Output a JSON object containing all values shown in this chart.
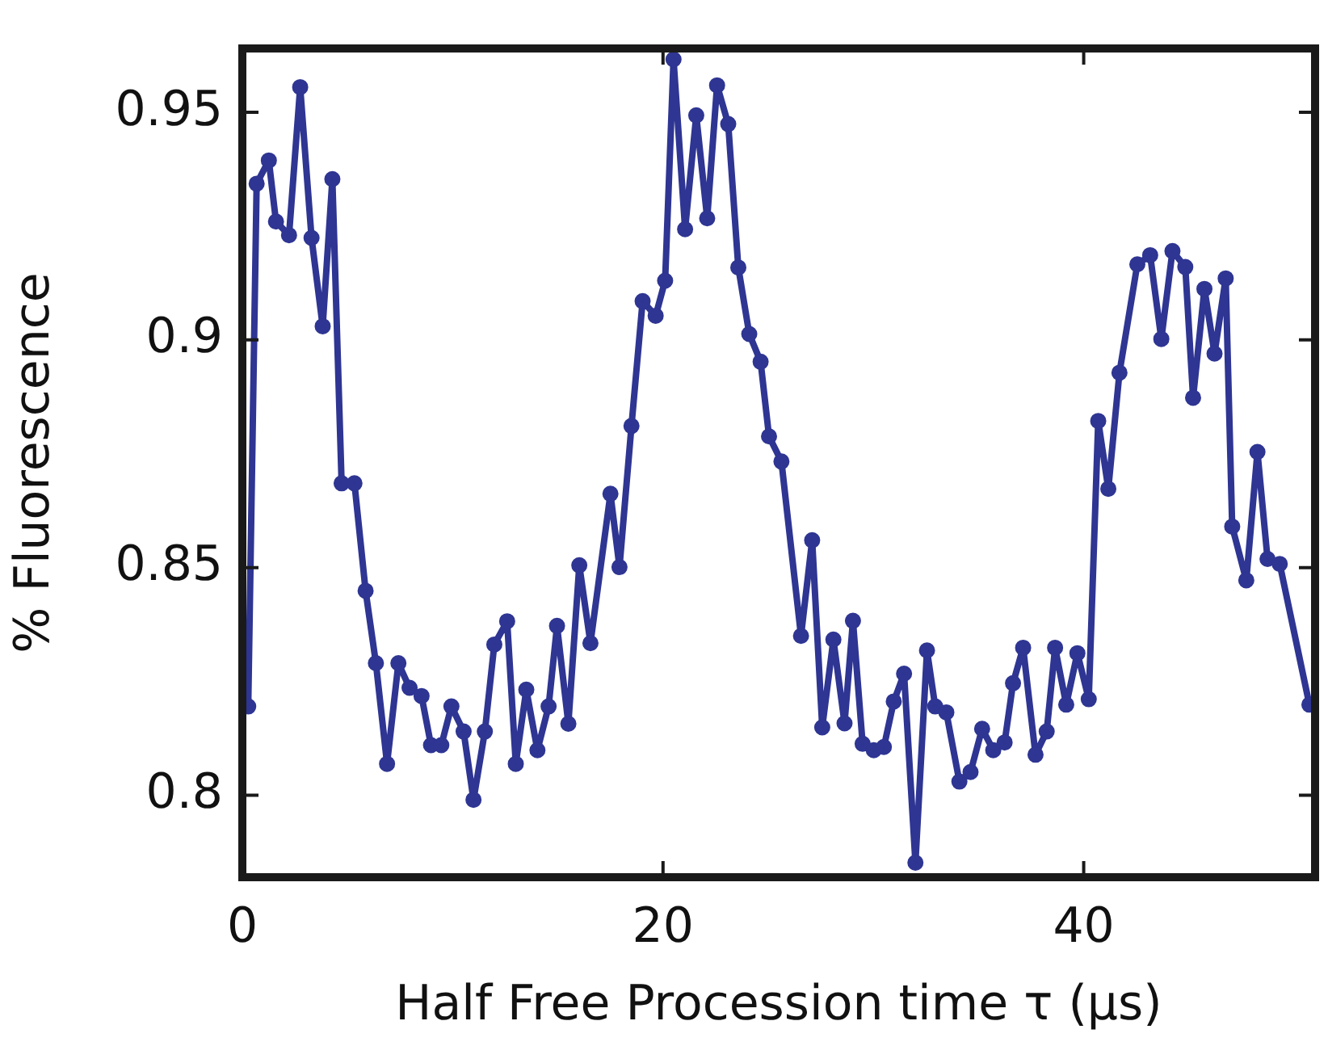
{
  "chart_data": {
    "type": "line",
    "xlabel": "Half Free Procession time τ (µs)",
    "ylabel": "% Fluorescence",
    "xlim": [
      0,
      51
    ],
    "xticks": [
      0,
      20,
      40
    ],
    "ylim": [
      0.782,
      0.964
    ],
    "yticks": [
      0.8,
      0.85,
      0.9,
      0.95
    ],
    "grid": false,
    "legend": false,
    "marker": "circle",
    "line_style": "solid",
    "series": [
      {
        "color": "#2e3592",
        "x": [
          0.28,
          0.68,
          1.26,
          1.6,
          2.22,
          2.75,
          3.29,
          3.82,
          4.28,
          4.72,
          5.33,
          5.86,
          6.35,
          6.88,
          7.42,
          7.95,
          8.52,
          8.97,
          9.46,
          9.94,
          10.52,
          10.99,
          11.53,
          11.98,
          12.59,
          13.0,
          13.5,
          14.03,
          14.56,
          14.96,
          15.5,
          16.02,
          16.55,
          17.5,
          17.93,
          18.5,
          19.03,
          19.65,
          20.1,
          20.5,
          21.05,
          21.58,
          22.1,
          22.57,
          23.1,
          23.58,
          24.1,
          24.64,
          25.04,
          25.63,
          26.56,
          27.09,
          27.57,
          28.1,
          28.63,
          29.03,
          29.49,
          30.02,
          30.5,
          30.97,
          31.46,
          32.0,
          32.55,
          32.94,
          33.47,
          34.09,
          34.62,
          35.17,
          35.7,
          36.24,
          36.64,
          37.12,
          37.71,
          38.24,
          38.64,
          39.17,
          39.7,
          40.24,
          40.69,
          41.17,
          41.7,
          42.55,
          43.16,
          43.69,
          44.22,
          44.83,
          45.2,
          45.74,
          46.22,
          46.75,
          47.06,
          47.73,
          48.26,
          48.74,
          49.32,
          50.73
        ],
        "values": [
          0.8195,
          0.9343,
          0.9394,
          0.926,
          0.923,
          0.9555,
          0.9224,
          0.903,
          0.9353,
          0.8685,
          0.8685,
          0.8449,
          0.829,
          0.8069,
          0.829,
          0.8236,
          0.8218,
          0.811,
          0.811,
          0.8195,
          0.814,
          0.799,
          0.814,
          0.8331,
          0.8382,
          0.8069,
          0.8232,
          0.8099,
          0.8195,
          0.8372,
          0.8157,
          0.8505,
          0.8334,
          0.8662,
          0.8501,
          0.8811,
          0.9085,
          0.9053,
          0.913,
          0.9616,
          0.9243,
          0.9493,
          0.9267,
          0.9559,
          0.9474,
          0.9159,
          0.9013,
          0.8952,
          0.8788,
          0.8733,
          0.835,
          0.856,
          0.8149,
          0.8342,
          0.8158,
          0.8383,
          0.8113,
          0.8099,
          0.8106,
          0.8206,
          0.8267,
          0.7852,
          0.8318,
          0.8195,
          0.8182,
          0.803,
          0.8051,
          0.8146,
          0.8099,
          0.8116,
          0.8246,
          0.8324,
          0.8089,
          0.814,
          0.8324,
          0.8199,
          0.8312,
          0.8211,
          0.8822,
          0.8673,
          0.8928,
          0.9166,
          0.9186,
          0.9002,
          0.9195,
          0.916,
          0.8873,
          0.9112,
          0.897,
          0.9135,
          0.859,
          0.8472,
          0.8754,
          0.8519,
          0.8508,
          0.8199
        ]
      }
    ]
  }
}
